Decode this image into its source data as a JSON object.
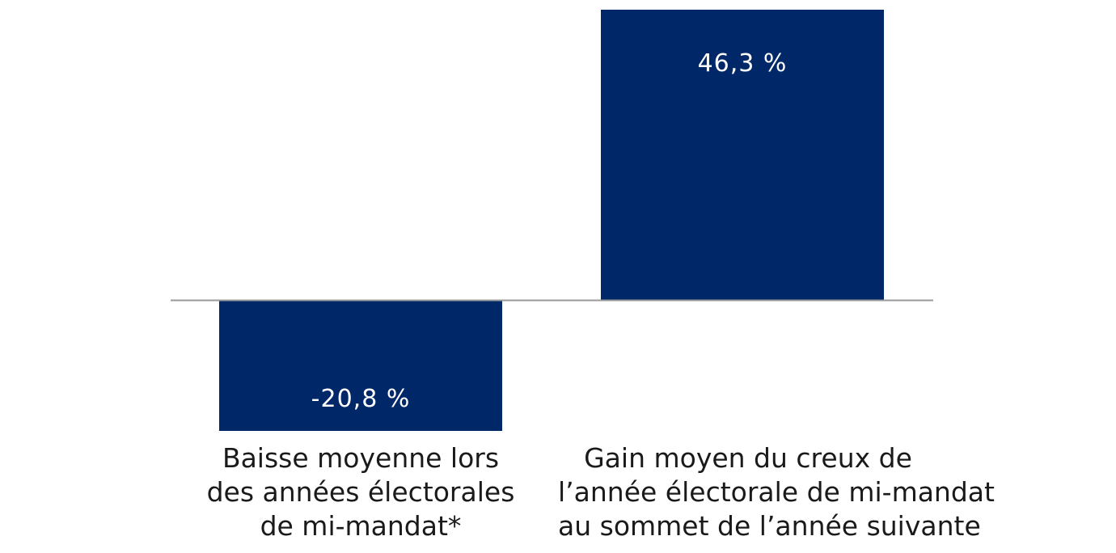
{
  "colors": {
    "bar": "#002868",
    "baseline": "#9a9a9a",
    "value_text": "#ffffff",
    "label_text": "#1a1a1a"
  },
  "chart_data": {
    "type": "bar",
    "categories": [
      [
        "Baisse moyenne lors",
        "des années électorales",
        "de mi-mandat*"
      ],
      [
        "Gain moyen du creux de",
        "l’année électorale de mi-mandat",
        "au sommet de l’année suivante"
      ]
    ],
    "values": [
      -20.8,
      46.3
    ],
    "value_labels": [
      "-20,8 %",
      "46,3 %"
    ],
    "title": "",
    "xlabel": "",
    "ylabel": "",
    "ylim": [
      -20.8,
      46.3
    ],
    "grid": false,
    "legend": "none"
  }
}
